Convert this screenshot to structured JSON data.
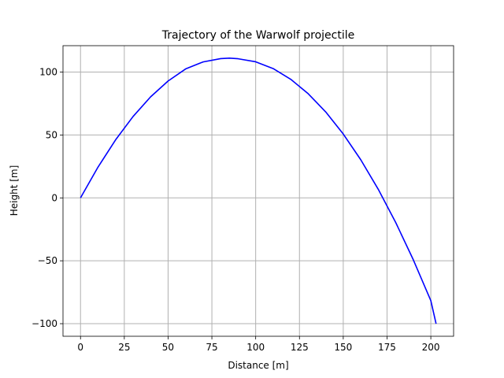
{
  "chart_data": {
    "type": "line",
    "title": "Trajectory of the Warwolf projectile",
    "xlabel": "Distance [m]",
    "ylabel": "Height [m]",
    "xlim": [
      -10,
      213
    ],
    "ylim": [
      -110,
      121
    ],
    "xticks": [
      0,
      25,
      50,
      75,
      100,
      125,
      150,
      175,
      200
    ],
    "yticks": [
      -100,
      -50,
      0,
      50,
      100
    ],
    "ytick_labels": [
      "−100",
      "−50",
      "0",
      "50",
      "100"
    ],
    "grid": true,
    "series": [
      {
        "color": "#0000ff",
        "x": [
          0,
          10,
          20,
          30,
          40,
          50,
          60,
          70,
          80,
          85,
          90,
          100,
          110,
          120,
          130,
          140,
          150,
          160,
          170,
          180,
          190,
          200,
          203
        ],
        "y": [
          0,
          24.5,
          46.1,
          64.7,
          80.3,
          92.9,
          102.5,
          108.1,
          110.7,
          111.1,
          110.6,
          108.2,
          102.8,
          94.3,
          82.8,
          68.3,
          50.8,
          30.3,
          6.8,
          -19.7,
          -49.2,
          -81.7,
          -100
        ]
      }
    ]
  }
}
